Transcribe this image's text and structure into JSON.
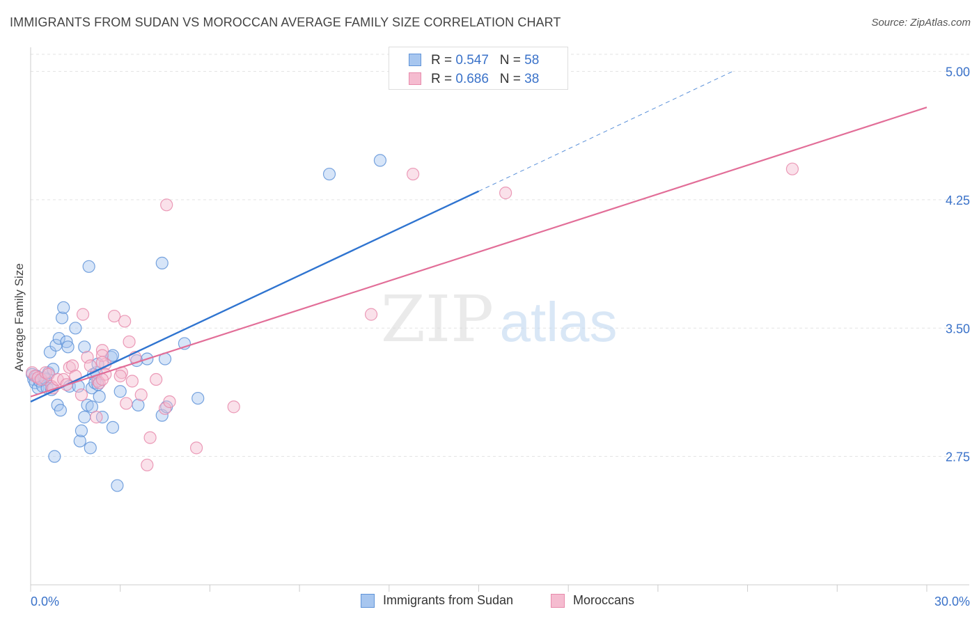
{
  "title": "IMMIGRANTS FROM SUDAN VS MOROCCAN AVERAGE FAMILY SIZE CORRELATION CHART",
  "source": "Source: ZipAtlas.com",
  "watermark": {
    "zip": "ZIP",
    "atlas": "atlas"
  },
  "colors": {
    "blue_fill": "#a7c6ef",
    "blue_stroke": "#5f93d8",
    "blue_line": "#2f74d0",
    "pink_fill": "#f5bcd0",
    "pink_stroke": "#e88aab",
    "pink_line": "#e26e98",
    "tick_label": "#3a72c9",
    "grid": "#e3e3e3"
  },
  "stats": [
    {
      "r_label": "R = ",
      "r_value": "0.547",
      "n_label": "N = ",
      "n_value": "58"
    },
    {
      "r_label": "R = ",
      "r_value": "0.686",
      "n_label": "N = ",
      "n_value": "38"
    }
  ],
  "chart_data": {
    "type": "scatter",
    "title": "IMMIGRANTS FROM SUDAN VS MOROCCAN AVERAGE FAMILY SIZE CORRELATION CHART",
    "xlabel": "",
    "ylabel": "Average Family Size",
    "xlim": [
      0,
      30
    ],
    "ylim": [
      2.0,
      5.1
    ],
    "x_tick_labels": [
      "0.0%",
      "30.0%"
    ],
    "y_ticks": [
      2.75,
      3.5,
      4.25,
      5.0
    ],
    "y_tick_labels": [
      "2.75",
      "3.50",
      "4.25",
      "5.00"
    ],
    "grid": true,
    "legend_position": "bottom",
    "series": [
      {
        "name": "Immigrants from Sudan",
        "color": "#5f93d8",
        "points": [
          [
            0.05,
            3.23
          ],
          [
            0.1,
            3.2
          ],
          [
            0.15,
            3.18
          ],
          [
            0.2,
            3.22
          ],
          [
            0.25,
            3.15
          ],
          [
            0.3,
            3.19
          ],
          [
            0.4,
            3.16
          ],
          [
            0.45,
            3.21
          ],
          [
            0.5,
            3.2
          ],
          [
            0.55,
            3.15
          ],
          [
            0.6,
            3.24
          ],
          [
            0.7,
            3.14
          ],
          [
            0.65,
            3.36
          ],
          [
            0.75,
            3.26
          ],
          [
            0.8,
            2.75
          ],
          [
            0.9,
            3.05
          ],
          [
            0.85,
            3.4
          ],
          [
            0.95,
            3.44
          ],
          [
            1.05,
            3.56
          ],
          [
            1.0,
            3.02
          ],
          [
            1.1,
            3.62
          ],
          [
            1.2,
            3.42
          ],
          [
            1.25,
            3.39
          ],
          [
            1.3,
            3.16
          ],
          [
            1.5,
            3.5
          ],
          [
            1.6,
            3.16
          ],
          [
            1.65,
            2.84
          ],
          [
            1.7,
            2.9
          ],
          [
            1.8,
            3.39
          ],
          [
            1.8,
            2.98
          ],
          [
            1.9,
            3.05
          ],
          [
            1.95,
            3.86
          ],
          [
            2.0,
            2.8
          ],
          [
            2.05,
            3.04
          ],
          [
            2.05,
            3.15
          ],
          [
            2.1,
            3.23
          ],
          [
            2.15,
            3.18
          ],
          [
            2.2,
            3.24
          ],
          [
            2.25,
            3.29
          ],
          [
            2.3,
            3.1
          ],
          [
            2.25,
            3.17
          ],
          [
            2.4,
            2.98
          ],
          [
            2.7,
            3.33
          ],
          [
            2.75,
            2.92
          ],
          [
            2.9,
            2.58
          ],
          [
            3.0,
            3.13
          ],
          [
            3.6,
            3.05
          ],
          [
            3.55,
            3.31
          ],
          [
            3.9,
            3.32
          ],
          [
            4.4,
            3.88
          ],
          [
            4.4,
            2.99
          ],
          [
            4.55,
            3.04
          ],
          [
            5.15,
            3.41
          ],
          [
            5.6,
            3.09
          ],
          [
            10.0,
            4.4
          ],
          [
            11.7,
            4.48
          ],
          [
            4.5,
            3.32
          ],
          [
            2.75,
            3.34
          ]
        ]
      },
      {
        "name": "Moroccans",
        "color": "#e88aab",
        "points": [
          [
            0.05,
            3.24
          ],
          [
            0.15,
            3.22
          ],
          [
            0.25,
            3.21
          ],
          [
            0.35,
            3.2
          ],
          [
            0.5,
            3.24
          ],
          [
            0.6,
            3.23
          ],
          [
            0.7,
            3.16
          ],
          [
            0.75,
            3.15
          ],
          [
            0.9,
            3.2
          ],
          [
            1.1,
            3.2
          ],
          [
            1.2,
            3.17
          ],
          [
            1.3,
            3.27
          ],
          [
            1.4,
            3.28
          ],
          [
            1.5,
            3.22
          ],
          [
            1.7,
            3.11
          ],
          [
            1.75,
            3.58
          ],
          [
            1.9,
            3.33
          ],
          [
            2.0,
            3.28
          ],
          [
            2.2,
            2.98
          ],
          [
            2.25,
            3.19
          ],
          [
            2.3,
            3.18
          ],
          [
            2.4,
            3.37
          ],
          [
            2.5,
            3.29
          ],
          [
            2.4,
            3.34
          ],
          [
            2.4,
            3.3
          ],
          [
            2.5,
            3.23
          ],
          [
            2.4,
            3.2
          ],
          [
            3.05,
            3.24
          ],
          [
            2.8,
            3.57
          ],
          [
            3.0,
            3.22
          ],
          [
            3.2,
            3.06
          ],
          [
            3.15,
            3.54
          ],
          [
            3.3,
            3.42
          ],
          [
            3.4,
            3.19
          ],
          [
            3.5,
            3.33
          ],
          [
            3.7,
            3.11
          ],
          [
            3.9,
            2.7
          ],
          [
            4.0,
            2.86
          ],
          [
            4.2,
            3.2
          ],
          [
            4.5,
            3.03
          ],
          [
            4.65,
            3.07
          ],
          [
            5.55,
            2.8
          ],
          [
            6.8,
            3.04
          ],
          [
            4.55,
            4.22
          ],
          [
            11.4,
            3.58
          ],
          [
            12.8,
            4.4
          ],
          [
            15.9,
            4.29
          ],
          [
            25.5,
            4.43
          ]
        ]
      }
    ],
    "trend_lines": [
      {
        "series": "Immigrants from Sudan",
        "x": [
          0,
          15.0
        ],
        "y": [
          3.07,
          4.3
        ],
        "dashed_extension_x": [
          15.0,
          23.5
        ],
        "dashed_extension_y": [
          4.3,
          5.0
        ]
      },
      {
        "series": "Moroccans",
        "x": [
          0,
          30
        ],
        "y": [
          3.1,
          4.79
        ]
      }
    ]
  }
}
